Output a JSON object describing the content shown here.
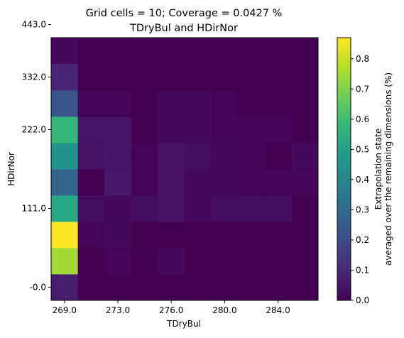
{
  "chart_data": {
    "type": "heatmap",
    "title_line1": "Grid cells = 10; Coverage = 0.0427 %",
    "title_line2": "TDryBul and HDirNor",
    "xlabel": "TDryBul",
    "ylabel": "HDirNor",
    "x_tick_labels": [
      "269.0",
      "273.0",
      "276.0",
      "280.0",
      "284.0"
    ],
    "y_tick_labels": [
      "-0.0",
      "111.0",
      "222.0",
      "332.0",
      "443.0"
    ],
    "colorbar": {
      "label_line1": "Extrapolation state",
      "label_line2": "averaged over the remaining dimensions (%)",
      "vmin": 0.0,
      "vmax": 0.87,
      "tick_labels": [
        "0.0",
        "0.1",
        "0.2",
        "0.3",
        "0.4",
        "0.5",
        "0.6",
        "0.7",
        "0.8"
      ],
      "tick_values": [
        0.0,
        0.1,
        0.2,
        0.3,
        0.4,
        0.5,
        0.6,
        0.7,
        0.8
      ]
    },
    "grid_cells": 10,
    "values_rows_bottom_to_top": [
      [
        0.07,
        0.0,
        0.0,
        0.0,
        0.0,
        0.0,
        0.0,
        0.0,
        0.0,
        0.0
      ],
      [
        0.75,
        0.0,
        0.01,
        0.0,
        0.02,
        0.0,
        0.0,
        0.0,
        0.0,
        0.0
      ],
      [
        0.87,
        0.01,
        0.02,
        0.0,
        0.0,
        0.0,
        0.0,
        0.0,
        0.0,
        0.0
      ],
      [
        0.52,
        0.03,
        0.02,
        0.03,
        0.04,
        0.02,
        0.03,
        0.03,
        0.03,
        0.0
      ],
      [
        0.28,
        0.0,
        0.06,
        0.01,
        0.04,
        0.02,
        0.02,
        0.01,
        0.01,
        0.01
      ],
      [
        0.45,
        0.04,
        0.05,
        0.01,
        0.04,
        0.03,
        0.02,
        0.01,
        0.0,
        0.02
      ],
      [
        0.58,
        0.05,
        0.05,
        0.0,
        0.02,
        0.02,
        0.01,
        0.01,
        0.01,
        0.0
      ],
      [
        0.23,
        0.01,
        0.01,
        0.0,
        0.02,
        0.02,
        0.01,
        0.0,
        0.0,
        0.0
      ],
      [
        0.09,
        0.0,
        0.0,
        0.0,
        0.0,
        0.0,
        0.0,
        0.0,
        0.0,
        0.0
      ],
      [
        0.02,
        0.0,
        0.0,
        0.0,
        0.0,
        0.0,
        0.0,
        0.0,
        0.0,
        0.0
      ]
    ],
    "colormap": "viridis",
    "colormap_stops": [
      "#440154",
      "#482878",
      "#3e4989",
      "#31688e",
      "#26828e",
      "#1f9e89",
      "#35b779",
      "#6ece58",
      "#b5de2b",
      "#fde725"
    ],
    "grid": false
  }
}
